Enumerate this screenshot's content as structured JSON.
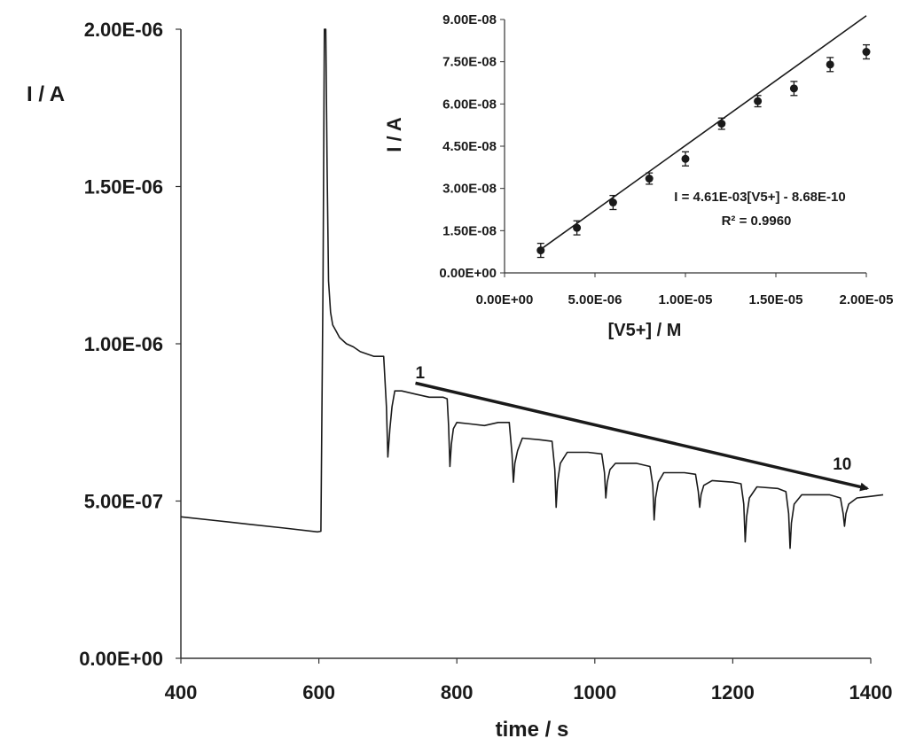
{
  "chart_data": [
    {
      "type": "line",
      "title": "",
      "xlabel": "time / s",
      "ylabel": "I / A",
      "xlim": [
        400,
        1400
      ],
      "ylim": [
        0,
        2e-06
      ],
      "x_ticks": [
        400,
        600,
        800,
        1000,
        1200,
        1400
      ],
      "x_tick_labels": [
        "400",
        "600",
        "800",
        "1000",
        "1200",
        "1400"
      ],
      "y_ticks": [
        0,
        5e-07,
        1e-06,
        1.5e-06,
        2e-06
      ],
      "y_tick_labels": [
        "0.00E+00",
        "5.00E-07",
        "1.00E-06",
        "1.50E-06",
        "2.00E-06"
      ],
      "grid": false,
      "series": [
        {
          "x": [
            400,
            450,
            500,
            550,
            598,
            603,
            606,
            608,
            610,
            612,
            614,
            617,
            620,
            625,
            630,
            640,
            650,
            660,
            680,
            694,
            698,
            700,
            703,
            706,
            710,
            720,
            740,
            760,
            780,
            786,
            788,
            790,
            792,
            795,
            800,
            820,
            840,
            860,
            876,
            880,
            882,
            884,
            888,
            895,
            920,
            938,
            942,
            944,
            946,
            950,
            960,
            990,
            1010,
            1014,
            1016,
            1018,
            1022,
            1030,
            1060,
            1080,
            1084,
            1086,
            1088,
            1092,
            1100,
            1130,
            1146,
            1150,
            1152,
            1154,
            1158,
            1170,
            1200,
            1212,
            1216,
            1218,
            1220,
            1224,
            1235,
            1265,
            1277,
            1281,
            1283,
            1285,
            1289,
            1300,
            1340,
            1356,
            1360,
            1362,
            1364,
            1368,
            1380,
            1400,
            1418
          ],
          "y": [
            4.5e-07,
            4.38e-07,
            4.26e-07,
            4.14e-07,
            4.02e-07,
            4.04e-07,
            1.2e-06,
            2e-06,
            2e-06,
            1.56e-06,
            1.2e-06,
            1.1e-06,
            1.06e-06,
            1.04e-06,
            1.02e-06,
            1e-06,
            9.9e-07,
            9.75e-07,
            9.6e-07,
            9.6e-07,
            8e-07,
            6.4e-07,
            7.3e-07,
            8e-07,
            8.5e-07,
            8.5e-07,
            8.4e-07,
            8.3e-07,
            8.3e-07,
            8.25e-07,
            7.4e-07,
            6.1e-07,
            6.8e-07,
            7.3e-07,
            7.5e-07,
            7.45e-07,
            7.4e-07,
            7.5e-07,
            7.5e-07,
            6.5e-07,
            5.6e-07,
            6.2e-07,
            6.6e-07,
            7e-07,
            6.95e-07,
            6.9e-07,
            6e-07,
            4.8e-07,
            5.6e-07,
            6.2e-07,
            6.55e-07,
            6.55e-07,
            6.5e-07,
            5.9e-07,
            5.1e-07,
            5.6e-07,
            6e-07,
            6.2e-07,
            6.2e-07,
            6.1e-07,
            5.5e-07,
            4.4e-07,
            5.1e-07,
            5.6e-07,
            5.9e-07,
            5.9e-07,
            5.85e-07,
            5.3e-07,
            4.8e-07,
            5.2e-07,
            5.5e-07,
            5.65e-07,
            5.6e-07,
            5.55e-07,
            4.9e-07,
            3.7e-07,
            4.5e-07,
            5.1e-07,
            5.45e-07,
            5.4e-07,
            5.3e-07,
            4.6e-07,
            3.5e-07,
            4.3e-07,
            4.9e-07,
            5.2e-07,
            5.2e-07,
            5.1e-07,
            4.6e-07,
            4.2e-07,
            4.6e-07,
            4.9e-07,
            5.1e-07,
            5.15e-07,
            5.2e-07
          ]
        }
      ],
      "annotations": [
        {
          "text": "1",
          "x": 740,
          "y": 8.9e-07
        },
        {
          "text": "10",
          "x": 1345,
          "y": 6e-07
        }
      ],
      "arrow": {
        "from": [
          740,
          8.75e-07
        ],
        "to": [
          1395,
          5.4e-07
        ]
      }
    },
    {
      "type": "scatter",
      "title": "",
      "xlabel": "[V5+] / M",
      "ylabel": "I / A",
      "xlim": [
        0,
        2e-05
      ],
      "ylim": [
        0,
        9e-08
      ],
      "x_ticks": [
        0,
        5e-06,
        1e-05,
        1.5e-05,
        2e-05
      ],
      "x_tick_labels": [
        "0.00E+00",
        "5.00E-06",
        "1.00E-05",
        "1.50E-05",
        "2.00E-05"
      ],
      "y_ticks": [
        0,
        1.5e-08,
        3e-08,
        4.5e-08,
        6e-08,
        7.5e-08,
        9e-08
      ],
      "y_tick_labels": [
        "0.00E+00",
        "1.50E-08",
        "3.00E-08",
        "4.50E-08",
        "6.00E-08",
        "7.50E-08",
        "9.00E-08"
      ],
      "grid": false,
      "series": [
        {
          "x": [
            2e-06,
            4e-06,
            6e-06,
            8e-06,
            1e-05,
            1.2e-05,
            1.4e-05,
            1.6e-05,
            1.8e-05,
            2e-05
          ],
          "y": [
            8e-09,
            1.6e-08,
            2.5e-08,
            3.35e-08,
            4.05e-08,
            5.3e-08,
            6.1e-08,
            6.55e-08,
            7.4e-08,
            7.85e-08
          ],
          "error": [
            2.5e-09,
            2.5e-09,
            2.5e-09,
            2e-09,
            2.5e-09,
            2e-09,
            2e-09,
            2.5e-09,
            2.5e-09,
            2.5e-09
          ]
        }
      ],
      "fit": {
        "slope": 0.00461,
        "intercept": -8.68e-10,
        "x_range": [
          2e-06,
          2e-05
        ]
      },
      "annotations": [
        "I = 4.61E-03[V5+]  - 8.68E-10",
        "R² = 0.9960"
      ]
    }
  ],
  "colors": {
    "line": "#1a1a1a",
    "axis": "#333333",
    "background": "#ffffff"
  }
}
